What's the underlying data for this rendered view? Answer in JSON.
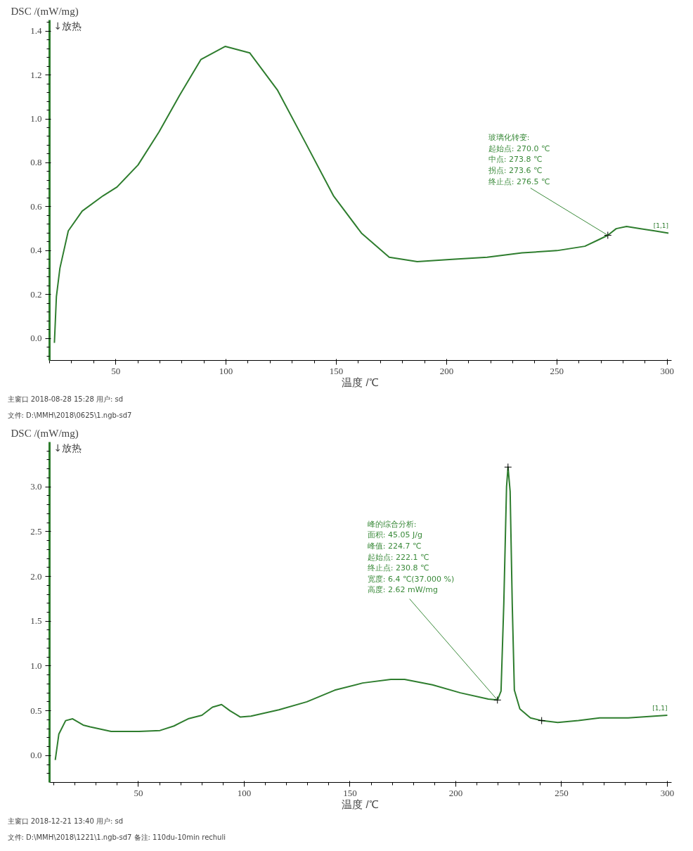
{
  "chart_data": [
    {
      "type": "line",
      "xlabel": "温度 /℃",
      "ylabel": "DSC /(mW/mg)",
      "xlim": [
        20,
        302
      ],
      "ylim": [
        -0.1,
        1.45
      ],
      "xticks": [
        50,
        100,
        150,
        200,
        250,
        300
      ],
      "yticks": [
        {
          "value": 0,
          "label": "0.0"
        },
        0.2,
        0.4,
        0.6,
        0.8,
        {
          "value": 1,
          "label": "1.0"
        },
        1.2,
        1.4
      ],
      "grid": false,
      "series": [
        {
          "name": "[1,1]",
          "color": "#2e7d2e",
          "x": [
            22.2,
            23.1,
            24.7,
            28.5,
            34.8,
            44.3,
            50.6,
            60.1,
            69.6,
            79.1,
            88.6,
            99.7,
            110.8,
            123.4,
            136.1,
            148.7,
            161.4,
            174,
            186.7,
            202.5,
            218.4,
            234.2,
            250,
            262.7,
            269,
            273.1,
            276.9,
            281.6,
            288,
            294.3,
            300.6
          ],
          "values": [
            -0.02,
            0.19,
            0.32,
            0.49,
            0.58,
            0.65,
            0.69,
            0.79,
            0.94,
            1.11,
            1.27,
            1.33,
            1.3,
            1.13,
            0.89,
            0.65,
            0.48,
            0.37,
            0.35,
            0.36,
            0.37,
            0.39,
            0.4,
            0.42,
            0.45,
            0.47,
            0.5,
            0.51,
            0.5,
            0.49,
            0.48
          ]
        },
        {
          "type": "scatter",
          "marker": "cross",
          "color": "#000000",
          "x": [
            273.1
          ],
          "values": [
            0.47
          ]
        }
      ],
      "annotations": [
        "↓放热",
        {
          "text": "玻璃化转变:\n起始点: 270.0 ℃\n中点:     273.8 ℃\n拐点:     273.6 ℃\n终止点: 276.5 ℃",
          "x": 273.1,
          "y": 0.47
        },
        "主窗口  2018-08-28 15:28  用户: sd",
        "文件: D:\\MMH\\2018\\0625\\1.ngb-sd7"
      ]
    },
    {
      "type": "line",
      "xlabel": "温度 /℃",
      "ylabel": "DSC /(mW/mg)",
      "xlim": [
        8,
        302
      ],
      "ylim": [
        -0.3,
        3.5
      ],
      "xticks": [
        50,
        100,
        150,
        200,
        250,
        300
      ],
      "yticks": [
        {
          "value": 0,
          "label": "0.0"
        },
        0.5,
        {
          "value": 1,
          "label": "1.0"
        },
        1.5,
        {
          "value": 2,
          "label": "2.0"
        },
        2.5,
        {
          "value": 3,
          "label": "3.0"
        }
      ],
      "grid": false,
      "series": [
        {
          "name": "[1,1]",
          "color": "#2e7d2e",
          "x": [
            10.7,
            12.4,
            15.6,
            18.9,
            23.9,
            27.2,
            37.1,
            50.3,
            60.2,
            66.8,
            73.5,
            80,
            85,
            89.3,
            93.3,
            98.2,
            103.2,
            116.4,
            129.6,
            142.8,
            156,
            169.3,
            175.8,
            189,
            202.2,
            215.4,
            219.7,
            221.4,
            222.7,
            224,
            224.7,
            225.7,
            226.7,
            227.7,
            230.3,
            235.3,
            240.6,
            248.2,
            258,
            268,
            281.5,
            300
          ],
          "values": [
            -0.05,
            0.24,
            0.39,
            0.41,
            0.34,
            0.32,
            0.27,
            0.27,
            0.28,
            0.33,
            0.41,
            0.45,
            0.54,
            0.57,
            0.5,
            0.43,
            0.44,
            0.51,
            0.6,
            0.73,
            0.81,
            0.85,
            0.85,
            0.79,
            0.7,
            0.63,
            0.62,
            0.72,
            1.69,
            3.0,
            3.22,
            2.95,
            1.69,
            0.73,
            0.52,
            0.42,
            0.39,
            0.37,
            0.39,
            0.42,
            0.42,
            0.45
          ]
        },
        {
          "type": "scatter",
          "marker": "cross",
          "color": "#000000",
          "x": [
            219.7,
            224.7,
            240.6
          ],
          "values": [
            0.62,
            3.22,
            0.39
          ]
        }
      ],
      "annotations": [
        "↓放热",
        {
          "text": "峰的综合分析:\n面积:      45.05 J/g\n峰值:    224.7 ℃\n起始点: 222.1 ℃\n终止点: 230.8 ℃\n宽度:      6.4 ℃(37.000 %)\n高度:      2.62 mW/mg",
          "x": 219.7,
          "y": 0.62
        },
        "主窗口  2018-12-21 13:40  用户: sd",
        "文件: D:\\MMH\\2018\\1221\\1.ngb-sd7  备注: 110du-10min rechuli"
      ]
    }
  ]
}
